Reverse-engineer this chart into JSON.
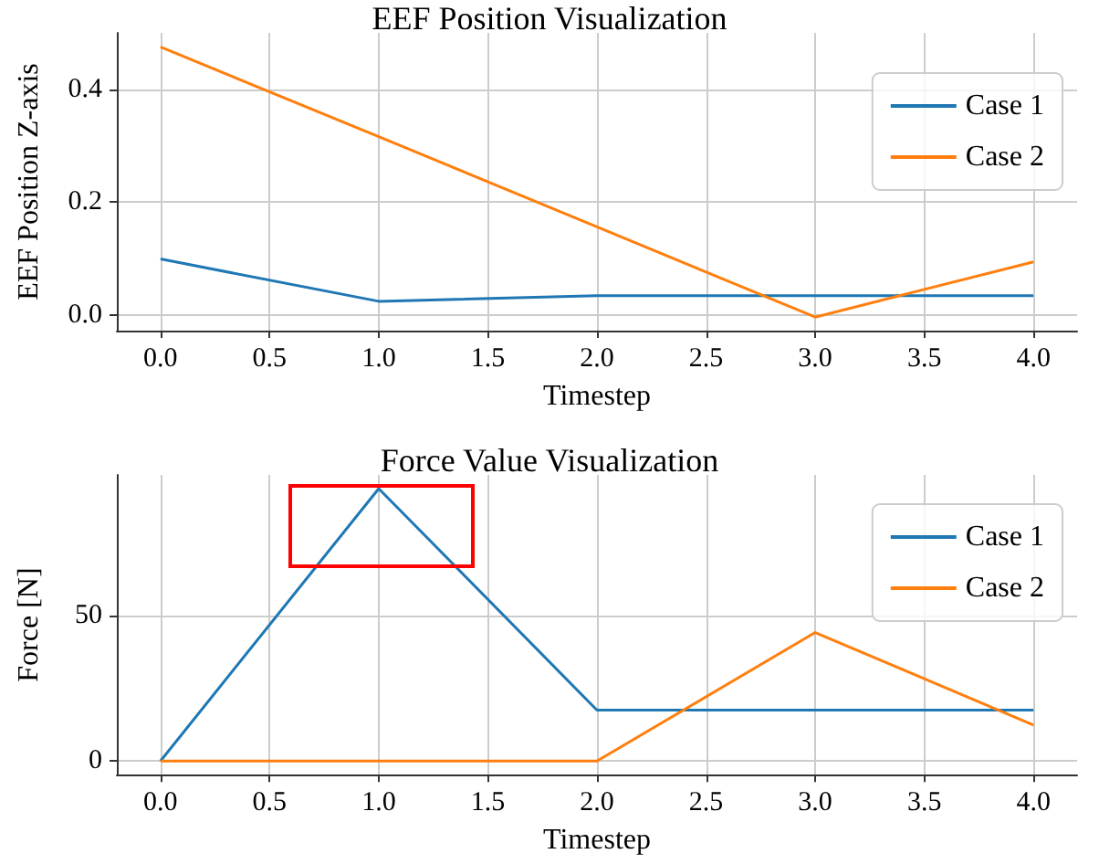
{
  "chart_data": [
    {
      "type": "line",
      "title": "EEF Position Visualization",
      "xlabel": "Timestep",
      "ylabel": "EEF Position Z-axis",
      "x": [
        0,
        1,
        2,
        3,
        4
      ],
      "series": [
        {
          "name": "Case 1",
          "color": "#1f77b4",
          "values": [
            0.099,
            0.024,
            0.034,
            0.034,
            0.034
          ]
        },
        {
          "name": "Case 2",
          "color": "#ff7f0e",
          "values": [
            0.475,
            0.316,
            0.156,
            -0.004,
            0.094
          ]
        }
      ],
      "xlim": [
        -0.2,
        4.2
      ],
      "ylim": [
        -0.028,
        0.5
      ],
      "xticks": [
        {
          "value": 0,
          "label": "0.0"
        },
        {
          "value": 0.5,
          "label": "0.5"
        },
        {
          "value": 1,
          "label": "1.0"
        },
        {
          "value": 1.5,
          "label": "1.5"
        },
        {
          "value": 2,
          "label": "2.0"
        },
        {
          "value": 2.5,
          "label": "2.5"
        },
        {
          "value": 3,
          "label": "3.0"
        },
        {
          "value": 3.5,
          "label": "3.5"
        },
        {
          "value": 4,
          "label": "4.0"
        }
      ],
      "yticks": [
        {
          "value": 0,
          "label": "0.0"
        },
        {
          "value": 0.2,
          "label": "0.2"
        },
        {
          "value": 0.4,
          "label": "0.4"
        }
      ],
      "grid": true,
      "legend": "top right",
      "marker": "none",
      "line_style": "solid"
    },
    {
      "type": "line",
      "title": "Force Value Visualization",
      "xlabel": "Timestep",
      "ylabel": "Force [N]",
      "x": [
        0,
        1,
        2,
        3,
        4
      ],
      "series": [
        {
          "name": "Case 1",
          "color": "#1f77b4",
          "values": [
            0,
            93.7,
            17.5,
            17.5,
            17.5
          ]
        },
        {
          "name": "Case 2",
          "color": "#ff7f0e",
          "values": [
            0,
            0,
            0,
            44.2,
            12.4
          ]
        }
      ],
      "xlim": [
        -0.2,
        4.2
      ],
      "ylim": [
        -4.7,
        98.4
      ],
      "xticks": [
        {
          "value": 0,
          "label": "0.0"
        },
        {
          "value": 0.5,
          "label": "0.5"
        },
        {
          "value": 1,
          "label": "1.0"
        },
        {
          "value": 1.5,
          "label": "1.5"
        },
        {
          "value": 2,
          "label": "2.0"
        },
        {
          "value": 2.5,
          "label": "2.5"
        },
        {
          "value": 3,
          "label": "3.0"
        },
        {
          "value": 3.5,
          "label": "3.5"
        },
        {
          "value": 4,
          "label": "4.0"
        }
      ],
      "yticks": [
        0,
        50
      ],
      "grid": true,
      "legend": "top right",
      "marker": "none",
      "line_style": "solid"
    }
  ]
}
